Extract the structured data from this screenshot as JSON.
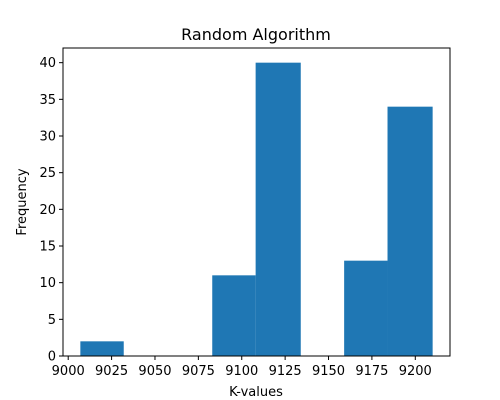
{
  "chart_data": {
    "type": "bar",
    "title": "Random Algorithm",
    "xlabel": "K-values",
    "ylabel": "Frequency",
    "bar_color": "#1f77b4",
    "xlim": [
      8997,
      9220
    ],
    "ylim": [
      0,
      42
    ],
    "xticks": [
      9000,
      9025,
      9050,
      9075,
      9100,
      9125,
      9150,
      9175,
      9200
    ],
    "yticks": [
      0,
      5,
      10,
      15,
      20,
      25,
      30,
      35,
      40
    ],
    "bins": [
      {
        "x0": 9007,
        "x1": 9032,
        "value": 2
      },
      {
        "x0": 9032,
        "x1": 9058,
        "value": 0
      },
      {
        "x0": 9058,
        "x1": 9083,
        "value": 0
      },
      {
        "x0": 9083,
        "x1": 9108,
        "value": 11
      },
      {
        "x0": 9108,
        "x1": 9134,
        "value": 40
      },
      {
        "x0": 9134,
        "x1": 9159,
        "value": 0
      },
      {
        "x0": 9159,
        "x1": 9184,
        "value": 13
      },
      {
        "x0": 9184,
        "x1": 9210,
        "value": 34
      }
    ],
    "grid": false,
    "legend": false
  }
}
